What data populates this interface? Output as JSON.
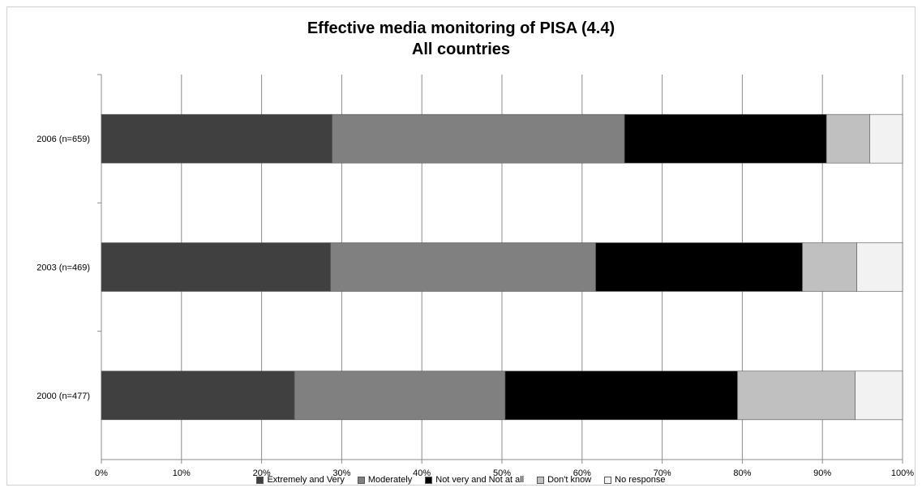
{
  "chart_data": {
    "type": "bar",
    "orientation": "horizontal",
    "stacked": "percent",
    "title": "Effective media monitoring of PISA  (4.4)",
    "subtitle": "All countries",
    "categories": [
      "2006 (n=659)",
      "2003 (n=469)",
      "2000 (n=477)"
    ],
    "series": [
      {
        "name": "Extremely and Very",
        "color": "#404040",
        "values": [
          28.8,
          28.6,
          24.1
        ]
      },
      {
        "name": "Moderately",
        "color": "#808080",
        "values": [
          36.5,
          33.1,
          26.3
        ]
      },
      {
        "name": "Not very and Not at all",
        "color": "#000000",
        "values": [
          25.2,
          25.8,
          29.0
        ]
      },
      {
        "name": "Don't know",
        "color": "#c0c0c0",
        "values": [
          5.4,
          6.8,
          14.7
        ]
      },
      {
        "name": "No response",
        "color": "#f2f2f2",
        "values": [
          4.1,
          5.7,
          5.9
        ]
      }
    ],
    "xlim": [
      0,
      100
    ],
    "x_ticks": [
      "0%",
      "10%",
      "20%",
      "30%",
      "40%",
      "50%",
      "60%",
      "70%",
      "80%",
      "90%",
      "100%"
    ],
    "grid": true,
    "legend_position": "bottom"
  }
}
